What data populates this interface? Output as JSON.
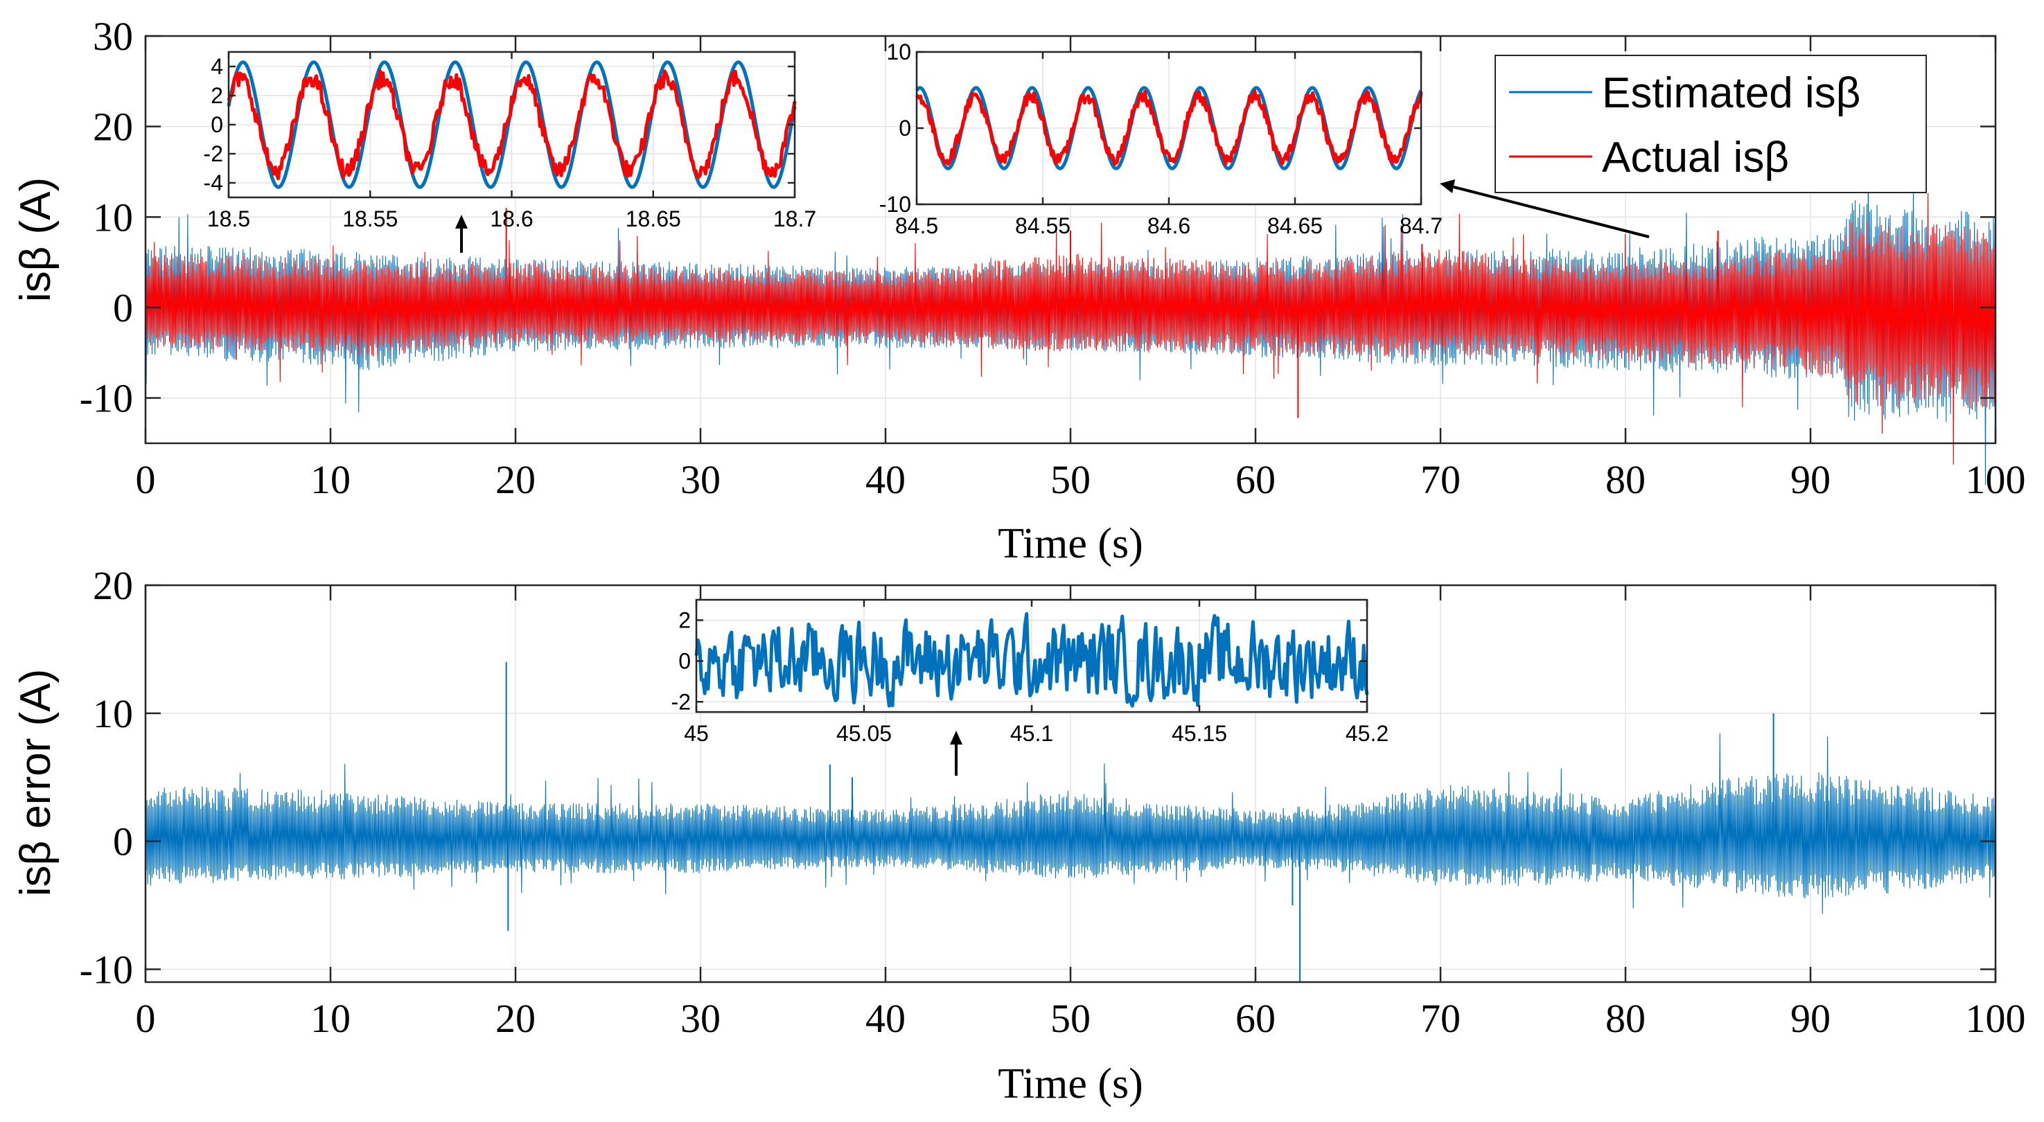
{
  "chart_data": [
    {
      "id": "top",
      "type": "line",
      "title": "",
      "xlabel": "Time (s)",
      "ylabel": "isβ (A)",
      "xlim": [
        0,
        100
      ],
      "ylim": [
        -15,
        30
      ],
      "xticks": [
        0,
        10,
        20,
        30,
        40,
        50,
        60,
        70,
        80,
        90,
        100
      ],
      "xtick_labels": [
        "0",
        "10",
        "20",
        "30",
        "40",
        "50",
        "60",
        "70",
        "80",
        "90",
        "100"
      ],
      "yticks": [
        -10,
        0,
        10,
        20,
        30
      ],
      "ytick_labels": [
        "-10",
        "0",
        "10",
        "20",
        "30"
      ],
      "grid": true,
      "legend": {
        "position": "top-right",
        "entries": [
          "Estimated isβ",
          "Actual isβ"
        ]
      },
      "series": [
        {
          "name": "Estimated isβ",
          "color": "#0072BD",
          "envelope_t": [
            0,
            10,
            12,
            20,
            30,
            40,
            45,
            50,
            55,
            60,
            65,
            70,
            75,
            80,
            85,
            90,
            91.8,
            92,
            95,
            100
          ],
          "envelope_upper": [
            7,
            6.5,
            6,
            5.5,
            5,
            4.5,
            4.5,
            5,
            5,
            5.5,
            6,
            6.5,
            6.5,
            6.5,
            7.5,
            8.5,
            8.5,
            12,
            11,
            10.5
          ],
          "envelope_lower": [
            -5.5,
            -6.5,
            -7,
            -5,
            -4.5,
            -4.5,
            -4.5,
            -4.8,
            -5,
            -5.5,
            -6,
            -6.5,
            -6.5,
            -7,
            -7.5,
            -8,
            -8,
            -12.5,
            -12.5,
            -12.8
          ]
        },
        {
          "name": "Actual isβ",
          "color": "#FF0000",
          "envelope_t": [
            0,
            10,
            12,
            20,
            30,
            40,
            45,
            50,
            55,
            60,
            65,
            70,
            75,
            80,
            85,
            90,
            91.8,
            92,
            95,
            100
          ],
          "envelope_upper": [
            6,
            5.5,
            5,
            5,
            4.5,
            4,
            5,
            6,
            5.5,
            5,
            5.5,
            6.5,
            5.5,
            5,
            5.5,
            7,
            7,
            10,
            9.5,
            9
          ],
          "envelope_lower": [
            -4.5,
            -5,
            -5.5,
            -4,
            -4,
            -4,
            -4.5,
            -5,
            -5,
            -5,
            -5.5,
            -5.5,
            -5.5,
            -6,
            -6.5,
            -7.5,
            -7.5,
            -11,
            -11,
            -11.5
          ],
          "spikes": [
            [
              19.5,
              11
            ],
            [
              62.3,
              -12.2
            ],
            [
              50,
              8.5
            ],
            [
              69,
              7
            ],
            [
              85,
              8.5
            ]
          ]
        }
      ],
      "insets": [
        {
          "id": "inset-a",
          "type": "line",
          "xlim": [
            18.5,
            18.7
          ],
          "ylim": [
            -5,
            5
          ],
          "xticks": [
            18.5,
            18.55,
            18.6,
            18.65,
            18.7
          ],
          "xtick_labels": [
            "18.5",
            "18.55",
            "18.6",
            "18.65",
            "18.7"
          ],
          "yticks": [
            -4,
            -2,
            0,
            2,
            4
          ],
          "ytick_labels": [
            "-4",
            "-2",
            "0",
            "2",
            "4"
          ],
          "arrow_label_at_time": 17,
          "series": [
            {
              "name": "Estimated isβ",
              "color": "#0072BD",
              "amplitude": 4.3,
              "frequency_hz": 40,
              "phase": 0.3
            },
            {
              "name": "Actual isβ",
              "color": "#FF0000",
              "amplitude": 3.2,
              "frequency_hz": 40,
              "phase": 0.5
            }
          ]
        },
        {
          "id": "inset-b",
          "type": "line",
          "xlim": [
            84.5,
            84.7
          ],
          "ylim": [
            -10,
            10
          ],
          "xticks": [
            84.5,
            84.55,
            84.6,
            84.65,
            84.7
          ],
          "xtick_labels": [
            "84.5",
            "84.55",
            "84.6",
            "84.65",
            "84.7"
          ],
          "yticks": [
            -10,
            0,
            10
          ],
          "ytick_labels": [
            "-10",
            "0",
            "10"
          ],
          "arrow_from_time": 81,
          "series": [
            {
              "name": "Estimated isβ",
              "color": "#0072BD",
              "amplitude": 5.3,
              "frequency_hz": 45,
              "phase": 1.2
            },
            {
              "name": "Actual isβ",
              "color": "#FF0000",
              "amplitude": 4.2,
              "frequency_hz": 45,
              "phase": 1.35
            }
          ]
        }
      ]
    },
    {
      "id": "bottom",
      "type": "line",
      "title": "",
      "xlabel": "Time (s)",
      "ylabel": "isβ error (A)",
      "xlim": [
        0,
        100
      ],
      "ylim": [
        -11,
        20
      ],
      "xticks": [
        0,
        10,
        20,
        30,
        40,
        50,
        60,
        70,
        80,
        90,
        100
      ],
      "xtick_labels": [
        "0",
        "10",
        "20",
        "30",
        "40",
        "50",
        "60",
        "70",
        "80",
        "90",
        "100"
      ],
      "yticks": [
        -10,
        0,
        10,
        20
      ],
      "ytick_labels": [
        "-10",
        "0",
        "10",
        "20"
      ],
      "grid": true,
      "series": [
        {
          "name": "isβ error",
          "color": "#0072BD",
          "envelope_t": [
            0,
            10,
            20,
            30,
            40,
            45,
            50,
            55,
            60,
            65,
            70,
            75,
            80,
            85,
            90,
            95,
            100
          ],
          "envelope_upper": [
            4.5,
            4,
            3,
            3,
            2.5,
            3,
            4,
            3,
            2.5,
            3,
            4.5,
            4,
            3.5,
            5,
            5.5,
            4.5,
            3.5
          ],
          "envelope_lower": [
            -3.5,
            -3,
            -2.5,
            -2.5,
            -2,
            -2.5,
            -3,
            -2.5,
            -2,
            -2.5,
            -3.5,
            -3.5,
            -3,
            -4,
            -4.5,
            -4,
            -3
          ],
          "spikes": [
            [
              19.5,
              14
            ],
            [
              19.6,
              -7
            ],
            [
              62.4,
              -11
            ],
            [
              62,
              -5
            ],
            [
              88,
              10
            ],
            [
              37,
              6
            ],
            [
              38.2,
              5
            ]
          ]
        }
      ],
      "insets": [
        {
          "id": "inset-c",
          "type": "line",
          "xlim": [
            45,
            45.2
          ],
          "ylim": [
            -2.5,
            3
          ],
          "xticks": [
            45,
            45.05,
            45.1,
            45.15,
            45.2
          ],
          "xtick_labels": [
            "45",
            "45.05",
            "45.1",
            "45.15",
            "45.2"
          ],
          "yticks": [
            -2,
            0,
            2
          ],
          "ytick_labels": [
            "-2",
            "0",
            "2"
          ],
          "arrow_label_at_time": 43.5,
          "series": [
            {
              "name": "isβ error",
              "color": "#0072BD",
              "amplitude": 1.1,
              "frequency_hz": 0,
              "phase": 0
            }
          ]
        }
      ]
    }
  ]
}
